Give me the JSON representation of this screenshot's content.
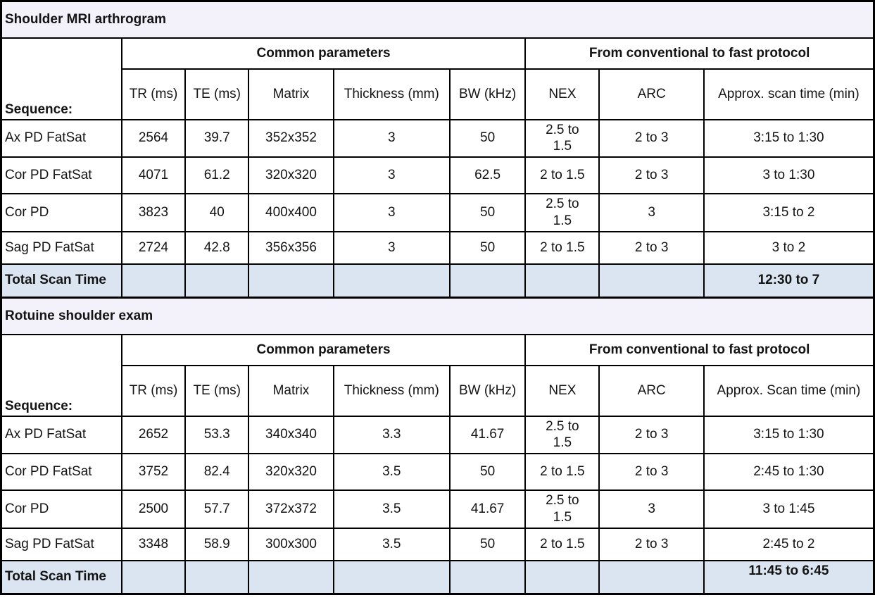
{
  "colors": {
    "title_band_bg": "#f3f1fa",
    "total_row_bg": "#dbe5f1",
    "cell_border": "#000000",
    "group_separator": "#595959",
    "text": "#141414"
  },
  "tables": [
    {
      "title": "Shoulder MRI arthrogram",
      "sequence_label": "Sequence:",
      "group_common": "Common parameters",
      "group_fast": "From conventional to fast protocol",
      "columns": [
        "TR (ms)",
        "TE (ms)",
        "Matrix",
        "Thickness (mm)",
        "BW (kHz)",
        "NEX",
        "ARC",
        "Approx. scan time (min)"
      ],
      "rows": [
        [
          "Ax PD FatSat",
          "2564",
          "39.7",
          "352x352",
          "3",
          "50",
          "2.5 to\n1.5",
          "2 to 3",
          "3:15 to 1:30"
        ],
        [
          "Cor PD FatSat",
          "4071",
          "61.2",
          "320x320",
          "3",
          "62.5",
          "2 to 1.5",
          "2 to 3",
          "3 to 1:30"
        ],
        [
          "Cor PD",
          "3823",
          "40",
          "400x400",
          "3",
          "50",
          "2.5 to\n1.5",
          "3",
          "3:15 to 2"
        ],
        [
          "Sag PD FatSat",
          "2724",
          "42.8",
          "356x356",
          "3",
          "50",
          "2 to 1.5",
          "2 to 3",
          "3 to 2"
        ]
      ],
      "total_label": "Total Scan Time",
      "total_time": "12:30 to 7"
    },
    {
      "title": "Rotuine shoulder exam",
      "sequence_label": "Sequence:",
      "group_common": "Common parameters",
      "group_fast": "From conventional to fast protocol",
      "columns": [
        "TR (ms)",
        "TE (ms)",
        "Matrix",
        "Thickness (mm)",
        "BW (kHz)",
        "NEX",
        "ARC",
        "Approx. Scan time (min)"
      ],
      "rows": [
        [
          "Ax PD FatSat",
          "2652",
          "53.3",
          "340x340",
          "3.3",
          "41.67",
          "2.5 to\n1.5",
          "2 to 3",
          "3:15 to 1:30"
        ],
        [
          "Cor PD FatSat",
          "3752",
          "82.4",
          "320x320",
          "3.5",
          "50",
          "2 to 1.5",
          "2 to 3",
          "2:45 to 1:30"
        ],
        [
          "Cor PD",
          "2500",
          "57.7",
          "372x372",
          "3.5",
          "41.67",
          "2.5 to\n1.5",
          "3",
          "3 to 1:45"
        ],
        [
          "Sag PD FatSat",
          "3348",
          "58.9",
          "300x300",
          "3.5",
          "50",
          "2 to 1.5",
          "2 to 3",
          "2:45 to 2"
        ]
      ],
      "total_label": "Total Scan Time",
      "total_time": "11:45 to 6:45"
    }
  ]
}
